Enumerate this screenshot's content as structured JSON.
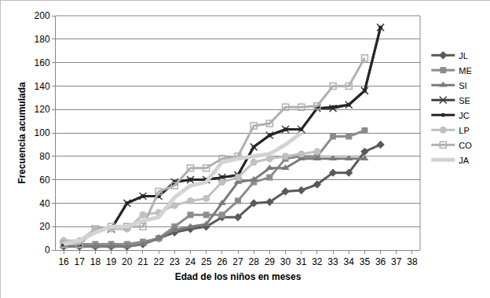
{
  "chart_data": {
    "type": "line",
    "x_label": "Edad de los niños en meses",
    "y_label": "Frecuencia acumulada",
    "x": [
      16,
      17,
      18,
      19,
      20,
      21,
      22,
      23,
      24,
      25,
      26,
      27,
      28,
      29,
      30,
      31,
      32,
      33,
      34,
      35,
      36
    ],
    "series": [
      {
        "name": "JL",
        "color": "#595959",
        "marker": "diamond",
        "line_style": "solid",
        "values": [
          3,
          3,
          3,
          3,
          3,
          5,
          10,
          15,
          18,
          20,
          28,
          28,
          40,
          41,
          50,
          51,
          56,
          66,
          66,
          84,
          90
        ]
      },
      {
        "name": "ME",
        "color": "#8c8c8c",
        "marker": "square",
        "line_style": "solid",
        "values": [
          5,
          5,
          5,
          5,
          5,
          7,
          10,
          20,
          30,
          30,
          30,
          42,
          58,
          62,
          78,
          80,
          80,
          97,
          97,
          102,
          null
        ]
      },
      {
        "name": "SI",
        "color": "#7a7a7a",
        "marker": "triangle",
        "line_style": "solid",
        "values": [
          3,
          3,
          3,
          3,
          3,
          5,
          10,
          17,
          20,
          22,
          40,
          58,
          60,
          70,
          70,
          78,
          78,
          78,
          78,
          78,
          null
        ]
      },
      {
        "name": "SE",
        "color": "#404040",
        "marker": "x",
        "line_style": "solid",
        "values": [
          5,
          5,
          18,
          18,
          40,
          46,
          46,
          58,
          60,
          60,
          62,
          64,
          88,
          98,
          103,
          103,
          121,
          121,
          124,
          136,
          190
        ]
      },
      {
        "name": "JC",
        "color": "#262626",
        "marker": "dot",
        "line_style": "solid",
        "values": [
          5,
          5,
          18,
          18,
          40,
          46,
          46,
          58,
          60,
          60,
          62,
          64,
          88,
          98,
          103,
          103,
          121,
          122,
          124,
          136,
          190
        ]
      },
      {
        "name": "LP",
        "color": "#c0c0c0",
        "marker": "circle",
        "line_style": "solid",
        "values": [
          8,
          8,
          18,
          18,
          18,
          30,
          32,
          38,
          42,
          44,
          58,
          62,
          75,
          78,
          80,
          82,
          84,
          null,
          null,
          null,
          null
        ]
      },
      {
        "name": "CO",
        "color": "#b0b0b0",
        "marker": "open_square",
        "line_style": "solid",
        "values": [
          5,
          5,
          18,
          20,
          20,
          20,
          50,
          55,
          70,
          70,
          78,
          80,
          106,
          108,
          122,
          122,
          123,
          140,
          140,
          164,
          null
        ]
      },
      {
        "name": "JA",
        "color": "#d3d3d3",
        "line_style": "solid",
        "values": [
          5,
          8,
          15,
          20,
          20,
          25,
          28,
          45,
          55,
          58,
          75,
          78,
          80,
          82,
          90,
          100,
          null,
          null,
          null,
          null,
          null
        ]
      }
    ],
    "xlim": [
      15.5,
      38.5
    ],
    "xticks": [
      16,
      17,
      18,
      19,
      20,
      21,
      22,
      23,
      24,
      25,
      26,
      27,
      28,
      29,
      30,
      31,
      32,
      33,
      34,
      35,
      36,
      37,
      38
    ],
    "ylim": [
      0,
      200
    ],
    "yticks": [
      0,
      20,
      40,
      60,
      80,
      100,
      120,
      140,
      160,
      180,
      200
    ],
    "grid": true,
    "legend": "right"
  }
}
